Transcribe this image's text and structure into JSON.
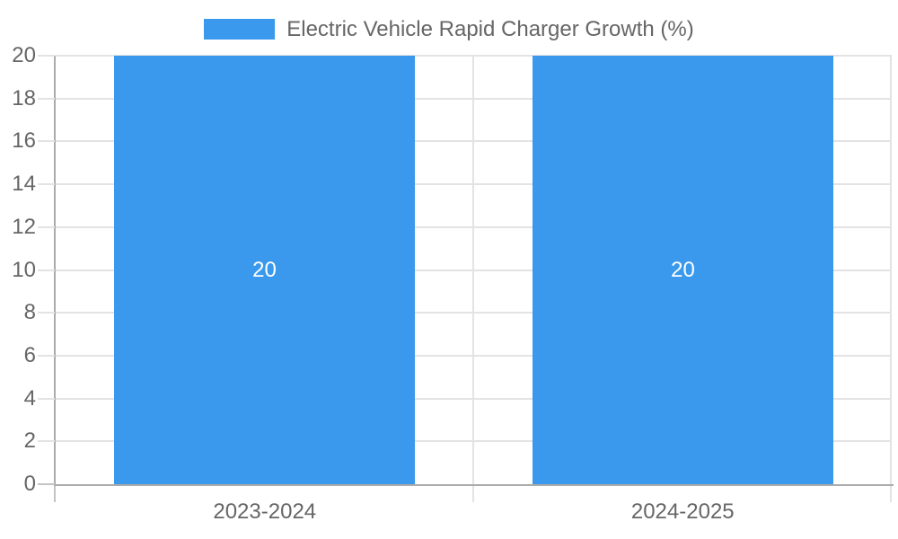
{
  "chart_data": {
    "type": "bar",
    "title": "Electric Vehicle Rapid Charger Growth (%)",
    "categories": [
      "2023-2024",
      "2024-2025"
    ],
    "series": [
      {
        "name": "Electric Vehicle Rapid Charger Growth (%)",
        "values": [
          20,
          20
        ]
      }
    ],
    "data_labels": [
      "20",
      "20"
    ],
    "xlabel": "",
    "ylabel": "",
    "ylim": [
      0,
      20
    ],
    "ytick_step": 2,
    "yticks": [
      0,
      2,
      4,
      6,
      8,
      10,
      12,
      14,
      16,
      18,
      20
    ],
    "grid": true,
    "legend_position": "top-center",
    "bar_percentage": 0.72
  },
  "legend": {
    "label": "Electric Vehicle Rapid Charger Growth (%)"
  },
  "colors": {
    "bar": "#3a99ec",
    "text": "#666666",
    "data_label": "#ffffff",
    "grid": "#e3e3e3",
    "axis": "#ababab",
    "tick_zero": "#c4c4c4",
    "background": "#ffffff"
  }
}
